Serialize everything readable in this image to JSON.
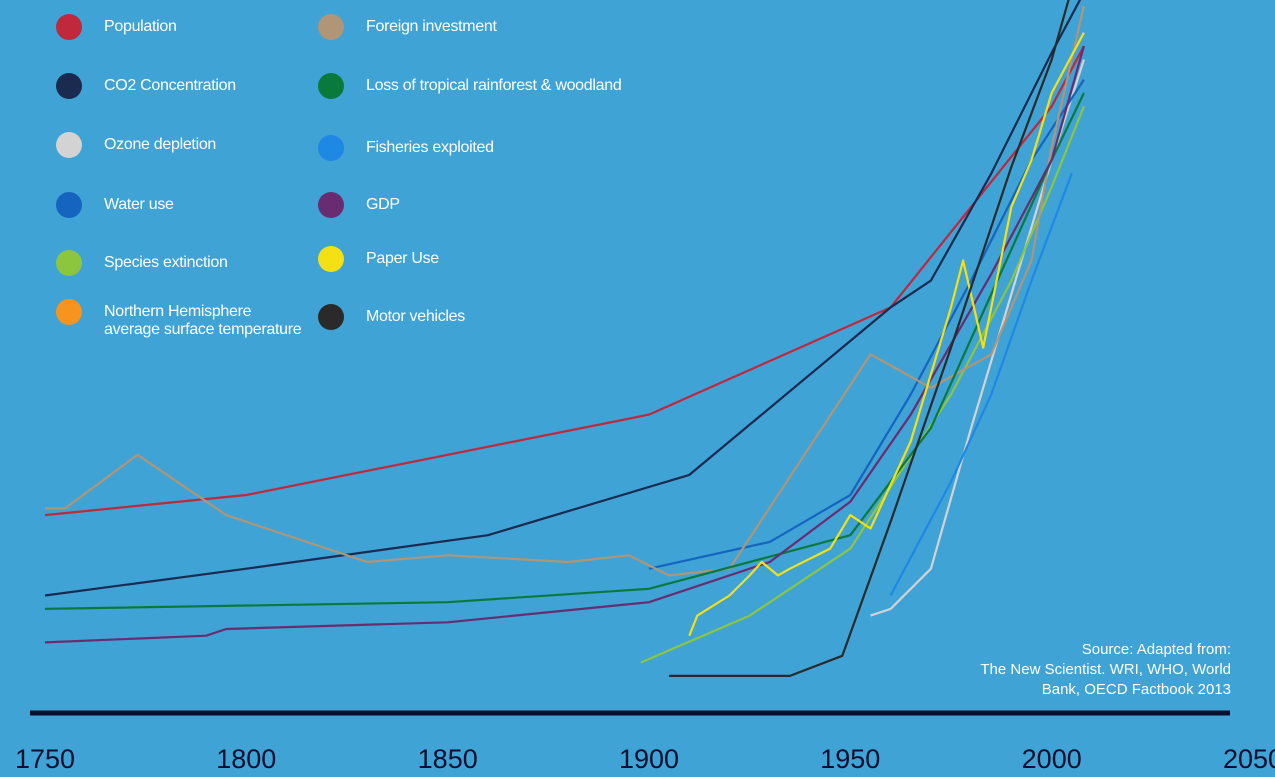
{
  "chart_data": {
    "type": "line",
    "title": "",
    "xlabel": "",
    "ylabel": "",
    "xlim": [
      1750,
      2050
    ],
    "ylim": [
      0,
      100
    ],
    "x_ticks": [
      "1750",
      "1800",
      "1850",
      "1900",
      "1950",
      "2000",
      "2050"
    ],
    "grid": false,
    "legend_position": "top-left",
    "series": [
      {
        "name": "Population",
        "color": "#c0283c",
        "x": [
          1750,
          1800,
          1850,
          1900,
          1930,
          1960,
          1980,
          2000,
          2008
        ],
        "y": [
          27,
          30,
          36,
          42,
          50,
          58,
          73,
          88,
          97
        ]
      },
      {
        "name": "CO2 Concentration",
        "color": "#1b2a4f",
        "x": [
          1750,
          1800,
          1860,
          1910,
          1960,
          1970,
          1985,
          2000,
          2008
        ],
        "y": [
          15,
          19,
          24,
          33,
          58,
          62,
          78,
          96,
          105
        ]
      },
      {
        "name": "Ozone depletion",
        "color": "#d3d3d3",
        "x": [
          1955,
          1960,
          1970,
          1980,
          1990,
          2000,
          2008
        ],
        "y": [
          12,
          13,
          19,
          40,
          60,
          80,
          95
        ]
      },
      {
        "name": "Water use",
        "color": "#1565c0",
        "x": [
          1900,
          1930,
          1950,
          1965,
          1980,
          1995,
          2008
        ],
        "y": [
          19,
          23,
          30,
          45,
          62,
          80,
          92
        ]
      },
      {
        "name": "Species extinction",
        "color": "#8cc63f",
        "x": [
          1898,
          1925,
          1950,
          1975,
          1990,
          2000,
          2008
        ],
        "y": [
          5,
          12,
          22,
          45,
          62,
          76,
          88
        ]
      },
      {
        "name": "Northern Hemisphere average surface temperature",
        "color": "#f7941d",
        "x": [],
        "y": []
      },
      {
        "name": "Foreign investment",
        "color": "#b09576",
        "x": [
          1750,
          1755,
          1773,
          1795,
          1830,
          1850,
          1880,
          1895,
          1905,
          1920,
          1955,
          1970,
          1985,
          1995,
          2000,
          2008
        ],
        "y": [
          28,
          28,
          36,
          27,
          20,
          21,
          20,
          21,
          18,
          19,
          51,
          46,
          51,
          65,
          82,
          103
        ]
      },
      {
        "name": "Loss of tropical rainforest & woodland",
        "color": "#0a7a3c",
        "x": [
          1750,
          1850,
          1900,
          1950,
          1970,
          1985,
          2000,
          2008
        ],
        "y": [
          13,
          14,
          16,
          24,
          40,
          60,
          80,
          90
        ]
      },
      {
        "name": "Fisheries exploited",
        "color": "#1e88e5",
        "x": [
          1960,
          1975,
          1985,
          1995,
          2005
        ],
        "y": [
          15,
          32,
          45,
          62,
          78
        ]
      },
      {
        "name": "GDP",
        "color": "#6a2c70",
        "x": [
          1750,
          1790,
          1795,
          1850,
          1900,
          1930,
          1950,
          1965,
          1985,
          2000,
          2008
        ],
        "y": [
          8,
          9,
          10,
          11,
          14,
          20,
          29,
          42,
          63,
          80,
          97
        ]
      },
      {
        "name": "Paper Use",
        "color": "#f5e014",
        "x": [
          1910,
          1912,
          1920,
          1925,
          1928,
          1932,
          1935,
          1945,
          1950,
          1955,
          1965,
          1975,
          1978,
          1983,
          1990,
          1995,
          2000,
          2008
        ],
        "y": [
          9,
          12,
          15,
          18,
          20,
          18,
          19,
          22,
          27,
          25,
          38,
          58,
          65,
          52,
          73,
          80,
          90,
          99
        ]
      },
      {
        "name": "Motor vehicles",
        "color": "#2a2a2a",
        "x": [
          1905,
          1935,
          1948,
          1960,
          1975,
          1990,
          2000,
          2008
        ],
        "y": [
          3,
          3,
          6,
          26,
          52,
          79,
          95,
          112
        ]
      }
    ]
  },
  "legend_col1": [
    {
      "name": "Population",
      "color": "#c0283c"
    },
    {
      "name": "CO2 Concentration",
      "color": "#1b2a4f"
    },
    {
      "name": "Ozone depletion",
      "color": "#d3d3d3"
    },
    {
      "name": "Water use",
      "color": "#1565c0"
    },
    {
      "name": "Species extinction",
      "color": "#8cc63f"
    },
    {
      "name": "Northern Hemisphere average surface temperature",
      "color": "#f7941d"
    }
  ],
  "legend_col2": [
    {
      "name": "Foreign investment",
      "color": "#b09576"
    },
    {
      "name": "Loss of tropical rainforest & woodland",
      "color": "#0a7a3c"
    },
    {
      "name": "Fisheries exploited",
      "color": "#1e88e5"
    },
    {
      "name": "GDP",
      "color": "#6a2c70"
    },
    {
      "name": "Paper Use",
      "color": "#f5e014"
    },
    {
      "name": "Motor vehicles",
      "color": "#2a2a2a"
    }
  ],
  "source": {
    "line1": "Source: Adapted from:",
    "line2": "The New Scientist. WRI, WHO, World",
    "line3": "Bank, OECD Factbook 2013"
  },
  "colors": {
    "background": "#3fa3d6",
    "axis_line": "#0a0f2e",
    "tick_label": "#0a0f2e"
  }
}
